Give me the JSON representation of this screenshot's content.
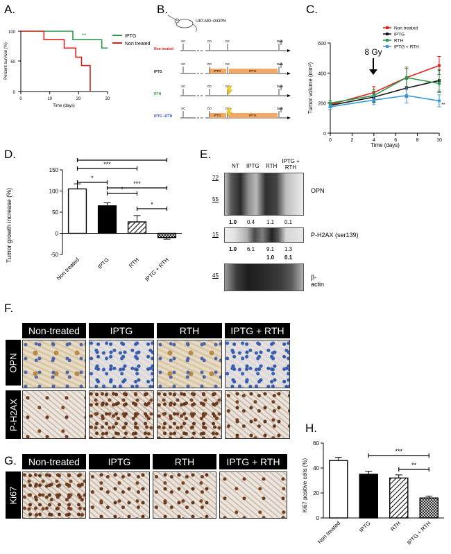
{
  "panels": {
    "A": "A.",
    "B": "B.",
    "C": "C.",
    "D": "D.",
    "E": "E.",
    "F": "F.",
    "G": "G.",
    "H": "H."
  },
  "panelA": {
    "ylabel": "Percent survival (%)",
    "xlabel": "Time (days)",
    "yticks": [
      "0",
      "50",
      "100"
    ],
    "xticks": [
      "0",
      "10",
      "20",
      "30"
    ],
    "significance": "**",
    "legend": [
      {
        "label": "IPTG",
        "color": "#2a9a4a"
      },
      {
        "label": "Non treated",
        "color": "#e0201a"
      }
    ]
  },
  "panelB": {
    "cell_line": "U87-MG shOPN",
    "rows": [
      {
        "label": "Non treated",
        "color": "#e0201a",
        "marks": [
          "SC",
          "D0",
          "D4",
          "D10"
        ],
        "bars": []
      },
      {
        "label": "IPTG",
        "color": "#222222",
        "marks": [
          "SC",
          "D0",
          "D4",
          "D10"
        ],
        "bars": [
          "IPTG",
          "IPTG"
        ]
      },
      {
        "label": "RTH",
        "color": "#2a9a4a",
        "marks": [
          "SC",
          "D0",
          "D4",
          "D10"
        ],
        "bars": []
      },
      {
        "label": "IPTG +RTH",
        "color": "#3b4fd0",
        "marks": [
          "SC",
          "D0",
          "D4",
          "D10"
        ],
        "bars": [
          "IPTG",
          "IPTG"
        ]
      }
    ]
  },
  "panelC": {
    "ylabel": "Tumor volume (mm³)",
    "xlabel": "Time (days)",
    "annotation": "8 Gy",
    "significance": "**",
    "legend": [
      {
        "label": "Non treated",
        "color": "#e0201a"
      },
      {
        "label": "IPTG",
        "color": "#111111"
      },
      {
        "label": "RTH",
        "color": "#2a9a4a"
      },
      {
        "label": "IPTG + RTH",
        "color": "#3a9ad9"
      }
    ]
  },
  "panelD": {
    "ylabel": "Tumor growth increase (%)",
    "significance": [
      "*",
      "***",
      "***",
      "*",
      "***",
      "*"
    ]
  },
  "panelE": {
    "lanes": [
      "NT",
      "IPTG",
      "RTH",
      "IPTG + RTH"
    ],
    "blots": [
      {
        "label": "OPN",
        "markers": [
          "72",
          "55"
        ],
        "quant": [
          "1.0",
          "0.4",
          "1.1",
          "0.1"
        ]
      },
      {
        "label": "P-H2AX (ser139)",
        "markers": [
          "15"
        ],
        "quant": [
          "1.0",
          "6.1",
          "9.1",
          "1.3"
        ],
        "quant2": [
          "1.0",
          "0.1"
        ]
      },
      {
        "label": "β-actin",
        "markers": [
          "45"
        ]
      }
    ]
  },
  "panelF": {
    "columns": [
      "Non-treated",
      "IPTG",
      "RTH",
      "IPTG + RTH"
    ],
    "rows": [
      "OPN",
      "P-H2AX"
    ]
  },
  "panelG": {
    "columns": [
      "Non-treated",
      "IPTG",
      "RTH",
      "IPTG + RTH"
    ],
    "row": "Ki67"
  },
  "panelH": {
    "ylabel": "Ki67 positive cells (%)",
    "significance": [
      "***",
      "**"
    ]
  },
  "chart_data": [
    {
      "type": "line",
      "panel": "A",
      "ylabel": "Percent survival (%)",
      "xlabel": "Time (days)",
      "xlim": [
        0,
        30
      ],
      "ylim": [
        0,
        100
      ],
      "series": [
        {
          "name": "IPTG",
          "steps": [
            [
              0,
              100
            ],
            [
              18,
              100
            ],
            [
              18,
              86
            ],
            [
              28,
              86
            ],
            [
              28,
              72
            ],
            [
              30,
              72
            ]
          ]
        },
        {
          "name": "Non treated",
          "steps": [
            [
              0,
              100
            ],
            [
              8,
              100
            ],
            [
              8,
              86
            ],
            [
              15,
              86
            ],
            [
              15,
              72
            ],
            [
              19,
              72
            ],
            [
              19,
              57
            ],
            [
              21,
              57
            ],
            [
              21,
              43
            ],
            [
              24,
              43
            ],
            [
              24,
              0
            ]
          ]
        }
      ]
    },
    {
      "type": "line",
      "panel": "C",
      "ylabel": "Tumor volume (mm³)",
      "xlabel": "Time (days)",
      "xticks": [
        0,
        2,
        4,
        6,
        8,
        10
      ],
      "yticks": [
        0,
        200,
        400,
        600
      ],
      "xlim": [
        0,
        10
      ],
      "ylim": [
        0,
        600
      ],
      "x": [
        0,
        4,
        7,
        10
      ],
      "series": [
        {
          "name": "Non treated",
          "values": [
            190,
            270,
            370,
            450
          ],
          "err": [
            15,
            40,
            60,
            60
          ]
        },
        {
          "name": "IPTG",
          "values": [
            185,
            240,
            300,
            350
          ],
          "err": [
            15,
            35,
            60,
            70
          ]
        },
        {
          "name": "RTH",
          "values": [
            200,
            250,
            370,
            330
          ],
          "err": [
            15,
            40,
            70,
            60
          ]
        },
        {
          "name": "IPTG + RTH",
          "values": [
            175,
            220,
            250,
            215
          ],
          "err": [
            15,
            30,
            50,
            40
          ]
        }
      ]
    },
    {
      "type": "bar",
      "panel": "D",
      "categories": [
        "Non treated",
        "IPTG",
        "RTH",
        "IPTG + RTH"
      ],
      "values": [
        105,
        65,
        27,
        -10
      ],
      "err": [
        12,
        7,
        15,
        4
      ],
      "yticks": [
        -50,
        0,
        50,
        100,
        150
      ],
      "ylim": [
        -50,
        150
      ],
      "ylabel": "Tumor growth increase (%)"
    },
    {
      "type": "bar",
      "panel": "H",
      "categories": [
        "Non treated",
        "IPTG",
        "RTH",
        "IPTG + RTH"
      ],
      "values": [
        46,
        35,
        32,
        16
      ],
      "err": [
        2.5,
        2.5,
        2.5,
        1.5
      ],
      "yticks": [
        0,
        20,
        40,
        60
      ],
      "ylim": [
        0,
        60
      ],
      "ylabel": "Ki67 positive cells (%)"
    }
  ]
}
